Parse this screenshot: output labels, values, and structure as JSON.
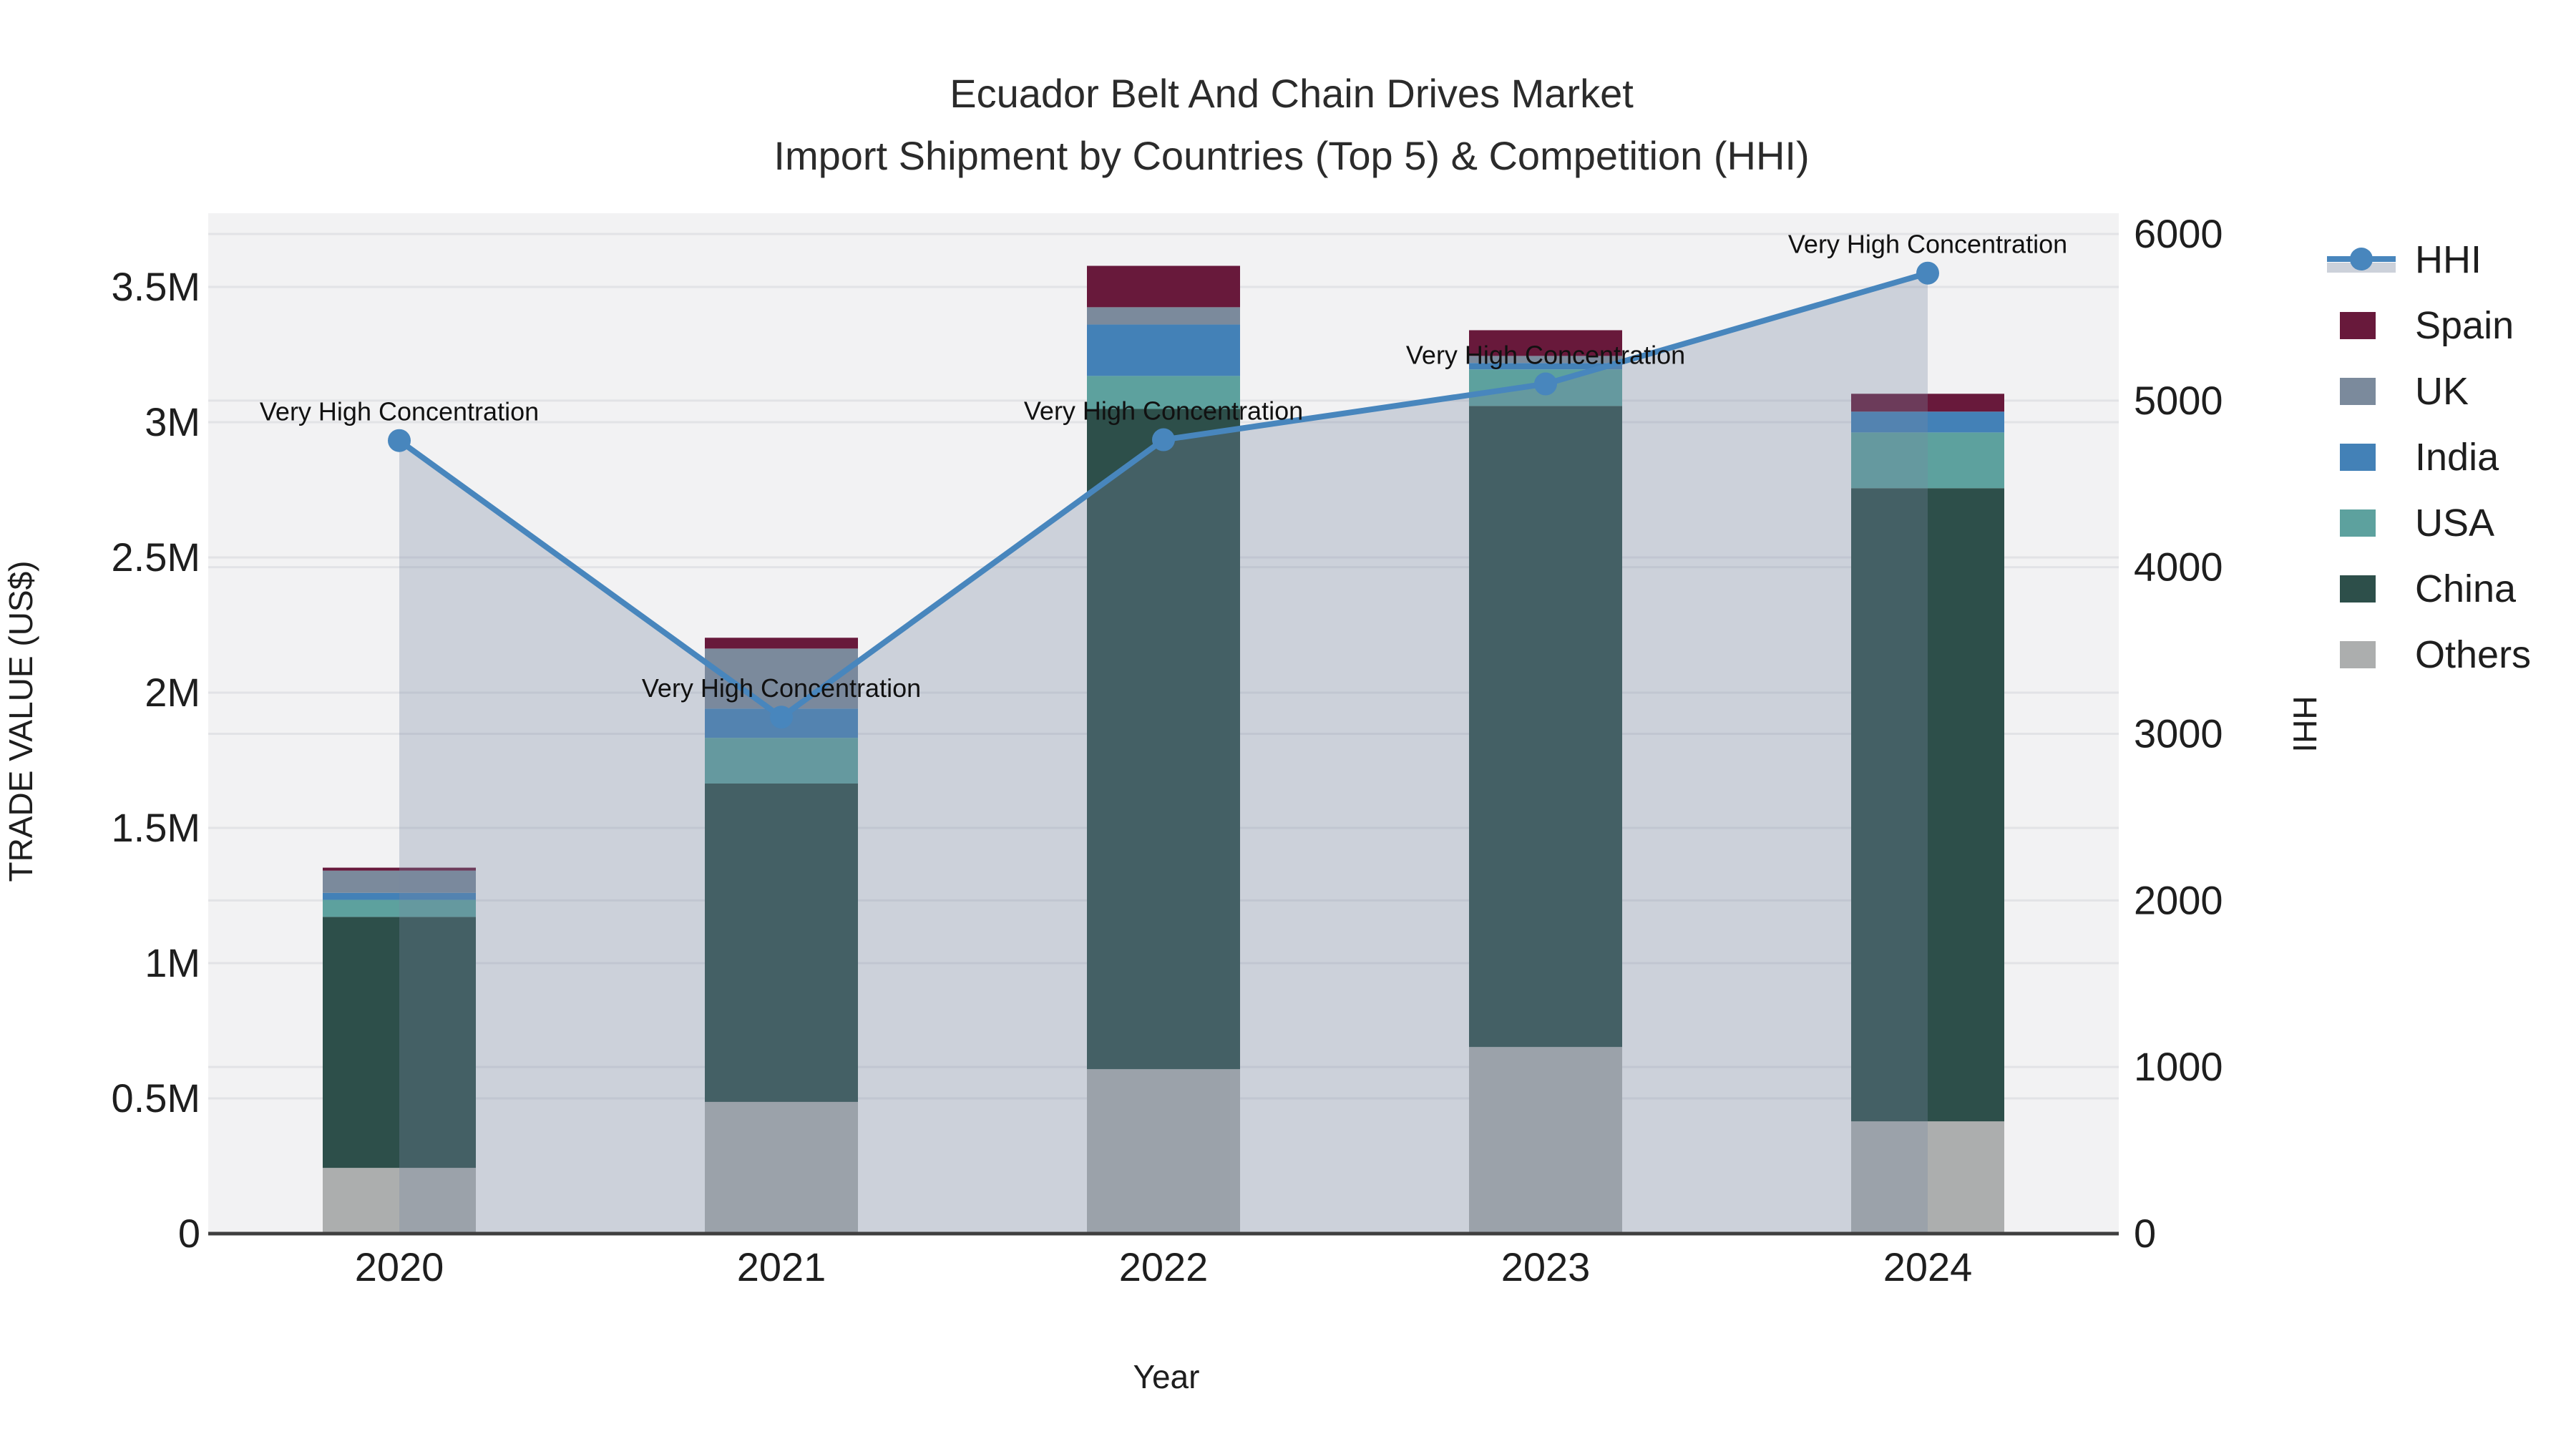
{
  "title": {
    "line1": "Ecuador Belt And Chain Drives Market",
    "line2": "Import Shipment by Countries (Top 5) & Competition (HHI)"
  },
  "axes": {
    "x": {
      "title": "Year",
      "tick_labels": [
        "2020",
        "2021",
        "2022",
        "2023",
        "2024"
      ]
    },
    "y_left": {
      "title": "TRADE VALUE (US$)",
      "tick_labels": [
        "0",
        "0.5M",
        "1M",
        "1.5M",
        "2M",
        "2.5M",
        "3M",
        "3.5M"
      ],
      "tick_values_usd": [
        0,
        500000,
        1000000,
        1500000,
        2000000,
        2500000,
        3000000,
        3500000
      ]
    },
    "y_right": {
      "title": "HHI",
      "tick_labels": [
        "0",
        "1000",
        "2000",
        "3000",
        "4000",
        "5000",
        "6000"
      ],
      "tick_values": [
        0,
        1000,
        2000,
        3000,
        4000,
        5000,
        6000
      ]
    }
  },
  "legend": {
    "items": [
      {
        "label": "HHI",
        "type": "line",
        "color": "#4886bd",
        "band_color": "#ccd1da"
      },
      {
        "label": "Spain",
        "type": "swatch",
        "color": "#68193b"
      },
      {
        "label": "UK",
        "type": "swatch",
        "color": "#7b8a9c"
      },
      {
        "label": "India",
        "type": "swatch",
        "color": "#4381b7"
      },
      {
        "label": "USA",
        "type": "swatch",
        "color": "#5da19e"
      },
      {
        "label": "China",
        "type": "swatch",
        "color": "#2d4f4a"
      },
      {
        "label": "Others",
        "type": "swatch",
        "color": "#acaeae"
      }
    ]
  },
  "chart_data": {
    "type": [
      "stacked-bar",
      "line"
    ],
    "categories": [
      "2020",
      "2021",
      "2022",
      "2023",
      "2024"
    ],
    "bar_series_bottom_to_top": [
      {
        "name": "Others",
        "color": "#acaeae",
        "values_usd": [
          243000,
          487000,
          608000,
          690000,
          415000
        ]
      },
      {
        "name": "China",
        "color": "#2d4f4a",
        "values_usd": [
          928000,
          1177000,
          2441000,
          2370000,
          2341000
        ]
      },
      {
        "name": "USA",
        "color": "#5da19e",
        "values_usd": [
          63000,
          169000,
          122000,
          135000,
          206000
        ]
      },
      {
        "name": "India",
        "color": "#4381b7",
        "values_usd": [
          26000,
          108000,
          190000,
          24000,
          77000
        ]
      },
      {
        "name": "UK",
        "color": "#7b8a9c",
        "values_usd": [
          82000,
          222000,
          64000,
          26000,
          0
        ]
      },
      {
        "name": "Spain",
        "color": "#68193b",
        "values_usd": [
          11000,
          40000,
          153000,
          95000,
          66000
        ]
      }
    ],
    "bar_totals_usd": [
      1353000,
      2203000,
      3578000,
      3340000,
      3105000
    ],
    "line_series": {
      "name": "HHI",
      "color": "#4886bd",
      "area_fill": "rgba(119,135,162,0.31)",
      "values": [
        4760,
        3100,
        4765,
        5100,
        5765
      ]
    },
    "annotations": [
      {
        "text": "Very High Concentration",
        "category": "2020"
      },
      {
        "text": "Very High Concentration",
        "category": "2021"
      },
      {
        "text": "Very High Concentration",
        "category": "2022"
      },
      {
        "text": "Very High Concentration",
        "category": "2023"
      },
      {
        "text": "Very High Concentration",
        "category": "2024"
      }
    ],
    "ylim_left_usd": [
      0,
      3772000
    ],
    "ylim_right": [
      0,
      6000
    ],
    "grid": true,
    "legend_position": "right"
  },
  "colors": {
    "plot_background": "#f2f2f3",
    "figure_background": "#ffffff",
    "gridline": "#e2e3e6",
    "axis_line": "#3f3f3f",
    "hhi_line": "#4886bd",
    "hhi_area": "rgba(119,135,162,0.31)",
    "legend_band": "#ccd1da"
  }
}
